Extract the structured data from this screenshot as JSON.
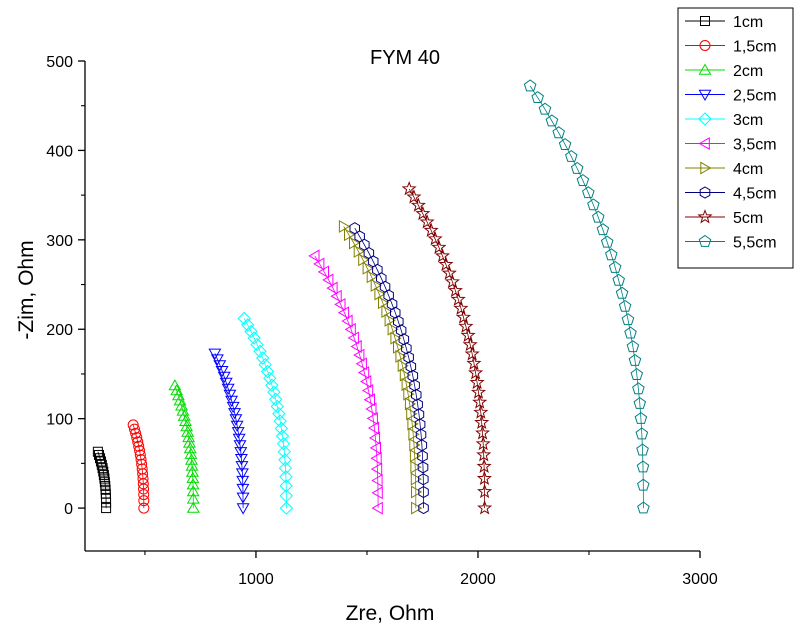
{
  "chart_data": {
    "type": "scatter",
    "title": "FYM 40",
    "xlabel": "Zre, Ohm",
    "ylabel": "-Zim, Ohm",
    "xlim": [
      230,
      3000
    ],
    "ylim": [
      -48,
      500
    ],
    "xticks": [
      1000,
      2000,
      3000
    ],
    "yticks": [
      0,
      100,
      200,
      300,
      400,
      500
    ],
    "legend_position": "top-right",
    "grid": false,
    "series": [
      {
        "name": "1cm",
        "color": "#000000",
        "marker": "square",
        "arc": {
          "xs": 325,
          "xe": 288,
          "ymax": 63,
          "n": 16
        }
      },
      {
        "name": "1,5cm",
        "color": "#ff0000",
        "marker": "circle",
        "arc": {
          "xs": 495,
          "xe": 447,
          "ymax": 93,
          "n": 18
        }
      },
      {
        "name": "2cm",
        "color": "#00dd00",
        "marker": "triangle-up",
        "arc": {
          "xs": 718,
          "xe": 635,
          "ymax": 137,
          "n": 22
        }
      },
      {
        "name": "2,5cm",
        "color": "#0000ff",
        "marker": "triangle-down",
        "arc": {
          "xs": 942,
          "xe": 815,
          "ymax": 173,
          "n": 24
        }
      },
      {
        "name": "3cm",
        "color": "#00ffff",
        "marker": "diamond",
        "arc": {
          "xs": 1137,
          "xe": 947,
          "ymax": 212,
          "n": 26
        }
      },
      {
        "name": "3,5cm",
        "color": "#ff00ff",
        "marker": "triangle-left",
        "arc": {
          "xs": 1550,
          "xe": 1265,
          "ymax": 282,
          "n": 28
        }
      },
      {
        "name": "4cm",
        "color": "#808000",
        "marker": "triangle-right",
        "arc": {
          "xs": 1720,
          "xe": 1395,
          "ymax": 315,
          "n": 30
        }
      },
      {
        "name": "4,5cm",
        "color": "#000080",
        "marker": "hexagon",
        "arc": {
          "xs": 1755,
          "xe": 1445,
          "ymax": 313,
          "n": 30
        }
      },
      {
        "name": "5cm",
        "color": "#800000",
        "marker": "star",
        "arc": {
          "xs": 2030,
          "xe": 1690,
          "ymax": 357,
          "n": 34
        }
      },
      {
        "name": "5,5cm",
        "color": "#008080",
        "marker": "pentagon",
        "arc": {
          "xs": 2745,
          "xe": 2235,
          "ymax": 472,
          "n": 32
        }
      }
    ]
  }
}
